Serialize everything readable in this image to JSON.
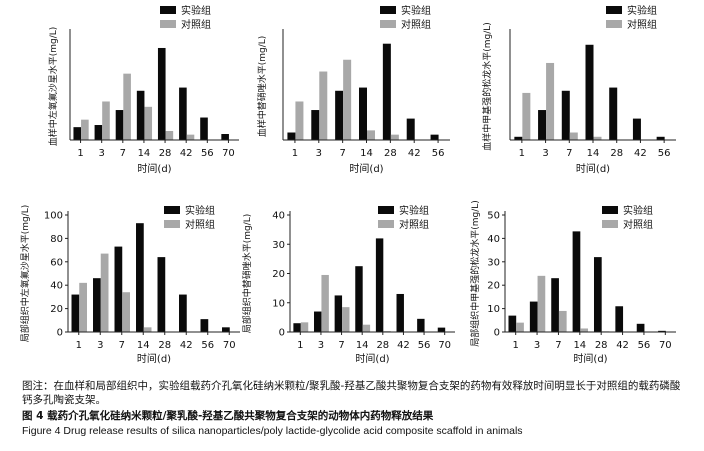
{
  "chart_data": [
    {
      "type": "bar",
      "ylabel": "血样中左氧氟沙星水平(mg/L)",
      "xlabel": "时间(d)",
      "categories": [
        "1",
        "3",
        "7",
        "14",
        "28",
        "42",
        "56",
        "70"
      ],
      "ylim": [
        0,
        5
      ],
      "series": [
        {
          "name": "实验组",
          "values": [
            0.6,
            0.7,
            1.4,
            2.3,
            4.3,
            2.45,
            1.05,
            0.28
          ]
        },
        {
          "name": "对照组",
          "values": [
            0.95,
            1.8,
            3.1,
            1.55,
            0.42,
            0.25,
            0,
            0
          ]
        }
      ]
    },
    {
      "type": "bar",
      "ylabel": "血样中替硝唑水平(mg/L)",
      "xlabel": "时间(d)",
      "categories": [
        "1",
        "3",
        "7",
        "14",
        "28",
        "42",
        "56"
      ],
      "ylim": [
        0,
        5
      ],
      "series": [
        {
          "name": "实验组",
          "values": [
            0.35,
            1.4,
            2.3,
            2.45,
            4.5,
            1.0,
            0.25
          ]
        },
        {
          "name": "对照组",
          "values": [
            1.8,
            3.2,
            3.75,
            0.45,
            0.25,
            0,
            0
          ]
        }
      ]
    },
    {
      "type": "bar",
      "ylabel": "血样中甲基强的松龙水平(mg/L)",
      "xlabel": "时间(d)",
      "categories": [
        "1",
        "3",
        "7",
        "14",
        "28",
        "42",
        "56"
      ],
      "ylim": [
        0,
        5
      ],
      "series": [
        {
          "name": "实验组",
          "values": [
            0.15,
            1.4,
            2.3,
            4.45,
            2.45,
            1.0,
            0.15
          ]
        },
        {
          "name": "对照组",
          "values": [
            2.2,
            3.6,
            0.35,
            0.15,
            0,
            0,
            0
          ]
        }
      ]
    },
    {
      "type": "bar",
      "ylabel": "局部组织中左氧氟沙星水平(mg/L)",
      "xlabel": "时间(d)",
      "categories": [
        "1",
        "3",
        "7",
        "14",
        "28",
        "42",
        "56",
        "70"
      ],
      "ylim": [
        0,
        100
      ],
      "yticks": [
        0,
        20,
        40,
        60,
        80,
        100
      ],
      "series": [
        {
          "name": "实验组",
          "values": [
            32,
            46,
            73,
            93,
            64,
            32,
            11,
            4
          ]
        },
        {
          "name": "对照组",
          "values": [
            42,
            67,
            34,
            4,
            0,
            0,
            0,
            0
          ]
        }
      ]
    },
    {
      "type": "bar",
      "ylabel": "局部组织中替硝唑水平(mg/L)",
      "xlabel": "时间(d)",
      "categories": [
        "1",
        "3",
        "7",
        "14",
        "28",
        "42",
        "56",
        "70"
      ],
      "ylim": [
        0,
        40
      ],
      "yticks": [
        0,
        10,
        20,
        30,
        40
      ],
      "series": [
        {
          "name": "实验组",
          "values": [
            3,
            7,
            12.5,
            22.5,
            32,
            13,
            4.5,
            1.5
          ]
        },
        {
          "name": "对照组",
          "values": [
            3.3,
            19.5,
            8.5,
            2.5,
            0.3,
            0,
            0,
            0
          ]
        }
      ]
    },
    {
      "type": "bar",
      "ylabel": "局部组织中甲基强的松龙水平(mg/L)",
      "xlabel": "时间(d)",
      "categories": [
        "1",
        "3",
        "7",
        "14",
        "28",
        "42",
        "56",
        "70"
      ],
      "ylim": [
        0,
        50
      ],
      "yticks": [
        0,
        10,
        20,
        30,
        40,
        50
      ],
      "series": [
        {
          "name": "实验组",
          "values": [
            7,
            13,
            23,
            43,
            32,
            11,
            3.5,
            0.5
          ]
        },
        {
          "name": "对照组",
          "values": [
            4,
            24,
            9,
            1.5,
            0.3,
            0,
            0,
            0
          ]
        }
      ]
    }
  ],
  "captions": {
    "note": "图注：在血样和局部组织中，实验组载药介孔氧化硅纳米颗粒/聚乳酸-羟基乙酸共聚物复合支架的药物有效释放时间明显长于对照组的载药磷酸钙多孔陶瓷支架。",
    "title_cn": "图 4   载药介孔氧化硅纳米颗粒/聚乳酸-羟基乙酸共聚物复合支架的动物体内药物释放结果",
    "title_en": "Figure 4   Drug release results of silica nanoparticles/poly lactide-glycolide acid composite scaffold in animals"
  },
  "colors": {
    "experimental": "#0a0a0a",
    "control": "#a8a8a8"
  }
}
